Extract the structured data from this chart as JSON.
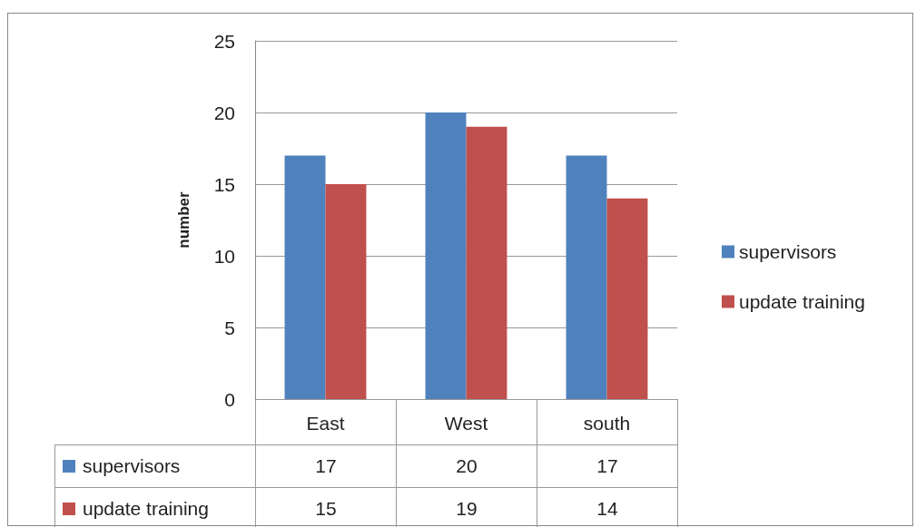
{
  "chart_data": {
    "type": "bar",
    "ylabel": "number",
    "categories": [
      "East",
      "West",
      "south"
    ],
    "series": [
      {
        "name": "supervisors",
        "color": "#4f81bd",
        "values": [
          17,
          20,
          17
        ]
      },
      {
        "name": "update training",
        "color": "#c0504d",
        "values": [
          15,
          19,
          14
        ]
      }
    ],
    "ylim": [
      0,
      25
    ],
    "yticks": [
      0,
      5,
      10,
      15,
      20,
      25
    ],
    "grid": "y",
    "legend": "right",
    "data_labels": true
  }
}
